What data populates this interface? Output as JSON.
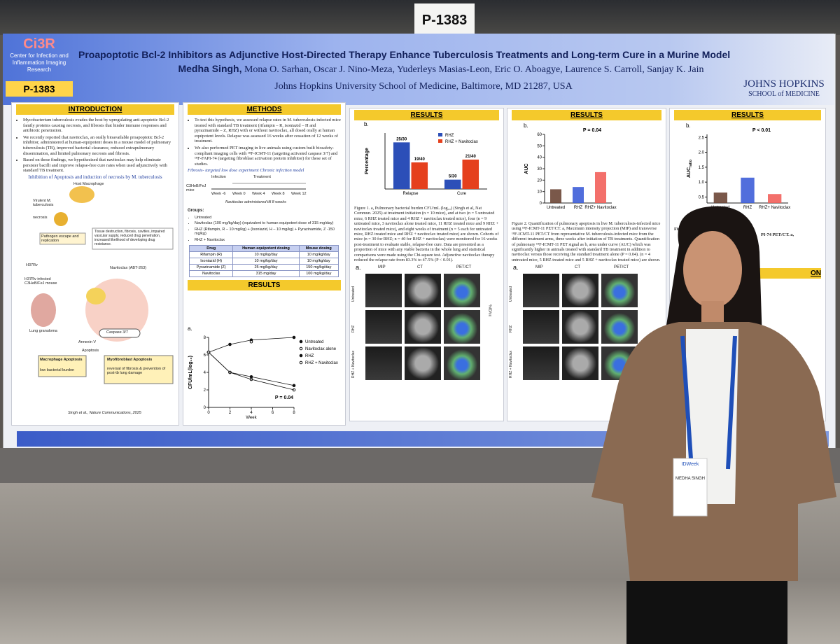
{
  "sign": "P-1383",
  "header": {
    "logo": "Ci3R",
    "center": "Center for Infection and Inflammation Imaging Research",
    "poster_id": "P-1383",
    "title": "Proapoptotic Bcl-2 Inhibitors as Adjunctive Host-Directed Therapy Enhance Tuberculosis Treatments and Long-term Cure in a Murine Model",
    "presenter": "Medha Singh,",
    "authors": "Mona O. Sarhan, Oscar J. Nino-Meza, Yuderleys Masias-Leon, Eric O. Aboagye, Laurence S. Carroll, Sanjay K. Jain",
    "affiliation": "Johns Hopkins University School of Medicine, Baltimore, MD 21287, USA",
    "institution": "JOHNS HOPKINS",
    "school": "SCHOOL of MEDICINE"
  },
  "introduction": {
    "heading": "INTRODUCTION",
    "bullets": [
      "Mycobacterium tuberculosis evades the host by upregulating anti-apoptotic Bcl-2 family proteins causing necrosis, and fibrosis that hinder immune responses and antibiotic penetration.",
      "We recently reported that navitoclax, an orally bioavailable proapoptotic Bcl-2 inhibitor, administered at human-equipotent doses in a mouse model of pulmonary tuberculosis (TB), improved bacterial clearance, reduced extrapulmonary dissemination, and limited pulmonary necrosis and fibrosis.",
      "Based on these findings, we hypothesized that navitoclax may help eliminate persister bacilli and improve relapse-free cure rates when used adjunctively with standard TB treatment."
    ],
    "figure_title": "Inhibition of Apoptosis and induction of necrosis by M. tuberculosis",
    "diagram": {
      "host": "Host Macrophage",
      "virulent": "Virulent M. tuberculosis",
      "necrosis": "necrosis",
      "escape": "Pathogen escape and replication",
      "damage": "Tissue destruction, fibrosis, cavities, impaired vascular supply, reduced drug penetration, increased likelihood of developing drug resistance.",
      "strain": "H37Rv",
      "mouse": "H37Rv infected C3HeB/FeJ mouse",
      "drug": "Navitoclax (ABT-263)",
      "granuloma": "Lung granuloma",
      "caspase": "Caspase 3/7",
      "annexin": "Annexin V",
      "apoptosis": "Apoptosis",
      "macrophage": "Macrophage Apoptosis",
      "macrophage_note": "low bacterial burden",
      "myofibroblast": "Myofibroblast Apoptosis",
      "myofibroblast_note": "reversal of fibrosis & prevention of post-tb lung damage",
      "citation": "Singh et al., Nature Communications, 2025"
    }
  },
  "methods": {
    "heading": "METHODS",
    "bullets": [
      "To test this hypothesis, we assessed relapse rates in M. tuberculosis-infected mice treated with standard TB treatment (rifampin – R, isoniazid – H and pyrazinamide – Z, RHZ) with or without navitoclax, all dosed orally at human equipotent levels. Relapse was assessed 16 weeks after cessation of 12 weeks of treatment.",
      "We also performed PET imaging in live animals using custom built biosafety-compliant imaging cells with ¹⁸F-ICMT-11 (targeting activated caspase 3/7) and ¹⁸F-FAPI-74 (targeting fibroblast activation protein inhibitor) for these set of studies."
    ],
    "experiment": "Fibrosis- targeted low dose experiment Chronic infection model",
    "timeline": {
      "infection": "Infection",
      "treatment": "Treatment",
      "mice": "C3HeB/FeJ mice",
      "weeks": [
        "Week -6",
        "Week 0",
        "Week 4",
        "Week 8",
        "Week 12"
      ],
      "note": "Navitoclax administered till 8 weeks"
    },
    "groups_heading": "Groups:",
    "groups": [
      "Untreated",
      "Navitoclax (100 mg/kg/day) (equivalent to human equipotent dose of 315 mg/day)",
      "RHZ (Rifampin, R – 10 mg/kg) + (Isoniazid, H – 10 mg/kg) + Pyrazinamide, Z -150 mg/kg)",
      "RHZ + Navitoclax"
    ],
    "table": {
      "header": [
        "Drug",
        "Human equipotent dosing",
        "Mouse dosing"
      ],
      "rows": [
        [
          "Rifampin (R)",
          "10 mg/kg/day",
          "10 mg/kg/day"
        ],
        [
          "Isoniazid (H)",
          "10 mg/kg/day",
          "10 mg/kg/day"
        ],
        [
          "Pyrazinamide (Z)",
          "25 mg/kg/day",
          "150 mg/kg/day"
        ],
        [
          "Navitoclax",
          "315 mg/day",
          "100 mg/kg/day"
        ]
      ]
    },
    "results_heading": "RESULTS"
  },
  "results_1": {
    "heading": "RESULTS",
    "caption": "Figure 1. a, Pulmonary bacterial burden CFU/mL (log₁₀) (Singh et al, Nat Commun. 2025) at treatment initiation (n = 10 mice), and at two (n = 5 untreated mice, 6 RHZ treated mice and 4 RHZ + navitoclax treated mice), four (n = 9 untreated mice, 3 navitoclax alone treated mice, 11 RHZ treated mice and 9 RHZ + navitoclax treated mice), and eight weeks of treatment (n = 5 each for untreated mice, RHZ treated mice and RHZ + navitoclax treated mice) are shown. Cohorts of mice (n = 30 for RHZ; n = 40 for RHZ + navitoclax) were monitored for 16 weeks post-treatment to evaluate stable, relapse-free cure. Data are presented as a proportion of mice with any viable bacteria in the whole lung and statistical comparisons were made using the Chi-square test. Adjunctive navitoclax therapy reduced the relapse rate from 83.3% to 47.5% (P < 0.01).",
    "panel": "a.",
    "columns": [
      "MIP",
      "CT",
      "PET/CT"
    ],
    "rows": [
      "Untreated",
      "RHZ",
      "RHZ + Navitoclax"
    ],
    "scale": "%ID/cc"
  },
  "results_2": {
    "heading": "RESULTS",
    "caption": "Figure 2. Quantification of pulmonary apoptosis in live M. tuberculosis-infected mice using ¹⁸F-ICMT-11 PET/CT. a, Maximum intensity projection (MIP) and transverse ¹⁸F-ICMT-11 PET/CT from representative M. tuberculosis-infected mice from the different treatment arms, three weeks after initiation of TB treatments. Quantification of pulmonary ¹⁸F-ICMT-11 PET signal as b, area under curve (AUC) which was significantly higher in animals treated with standard TB treatment in addition to navitoclax versus those receiving the standard treatment alone (P = 0.04). (n = 4 untreated mice, 5 RHZ treated mice and 5 RHZ + navitoclax treated mice) are shown.",
    "panel": "a.",
    "columns": [
      "MIP",
      "CT",
      "PET/CT"
    ],
    "rows": [
      "Untreated",
      "RHZ",
      "RHZ + Navitoclax"
    ]
  },
  "results_3": {
    "heading": "RESULTS",
    "caption_fragment": "Figu",
    "caption_fragment_2": "PI-74 PET/CT. a,",
    "panel": "a",
    "next_heading_fragment": "ON"
  },
  "badge": {
    "event": "IDWeek",
    "name": "MEDHA SINGH"
  },
  "chart_data": [
    {
      "type": "bar",
      "label": "b.",
      "ylabel": "Percentage",
      "categories": [
        "Relapse",
        "Cure"
      ],
      "series": [
        {
          "name": "RHZ",
          "color": "#2c4fb8",
          "values": [
            83.3,
            16.7
          ],
          "value_labels": [
            "25/30",
            "5/30"
          ]
        },
        {
          "name": "RHZ + Navitoclax",
          "color": "#e5401d",
          "values": [
            47.5,
            52.5
          ],
          "value_labels": [
            "19/40",
            "21/40"
          ]
        }
      ],
      "ylim": [
        0,
        100
      ]
    },
    {
      "type": "line",
      "label": "a.",
      "xlabel": "Week",
      "ylabel": "CFU/mL(log₁₀)",
      "x": [
        0,
        2,
        4,
        8
      ],
      "xlim": [
        0,
        8
      ],
      "xticks": [
        0,
        2,
        4,
        6,
        8
      ],
      "ylim": [
        0,
        8
      ],
      "yticks": [
        0,
        2,
        4,
        6,
        8
      ],
      "series": [
        {
          "name": "Untreated",
          "color": "#111111",
          "values": [
            6.3,
            7.2,
            7.7,
            8.0
          ]
        },
        {
          "name": "Navitoclax alone",
          "color": "#111111",
          "values": [
            null,
            null,
            7.5,
            null
          ]
        },
        {
          "name": "RHZ",
          "color": "#111111",
          "values": [
            6.3,
            4.0,
            3.5,
            2.5
          ]
        },
        {
          "name": "RHZ + Navitoclax",
          "color": "#111111",
          "values": [
            6.3,
            4.0,
            3.2,
            2.0
          ]
        }
      ],
      "annotation": "P = 0.04"
    },
    {
      "type": "bar",
      "label": "b.",
      "ylabel": "AUC",
      "categories": [
        "Untreated",
        "RHZ",
        "RHZ+ Navitoclax"
      ],
      "values": [
        12,
        14,
        27
      ],
      "colors": [
        "#6b4636",
        "#3e5ed8",
        "#f2615b"
      ],
      "ylim": [
        0,
        60
      ],
      "yticks": [
        0,
        10,
        20,
        30,
        40,
        50,
        60
      ],
      "annotation": "P = 0.04"
    },
    {
      "type": "bar",
      "label": "b.",
      "ylabel": "AUC",
      "ylabel_sub": "ratio",
      "categories": [
        "Untreated",
        "RHZ",
        "RHZ+ Navitoclax"
      ],
      "values": [
        0.65,
        1.15,
        0.6
      ],
      "colors": [
        "#6b4636",
        "#3e5ed8",
        "#f2615b"
      ],
      "ylim": [
        0.3,
        2.6
      ],
      "yticks": [
        {
          "value": 0.5,
          "label": "0.5"
        },
        {
          "value": 1,
          "label": "1.0"
        },
        {
          "value": 1.5,
          "label": "1.5"
        },
        {
          "value": 2,
          "label": "2.0"
        },
        {
          "value": 2.5,
          "label": "2.5"
        }
      ],
      "annotation": "P < 0.01"
    }
  ]
}
